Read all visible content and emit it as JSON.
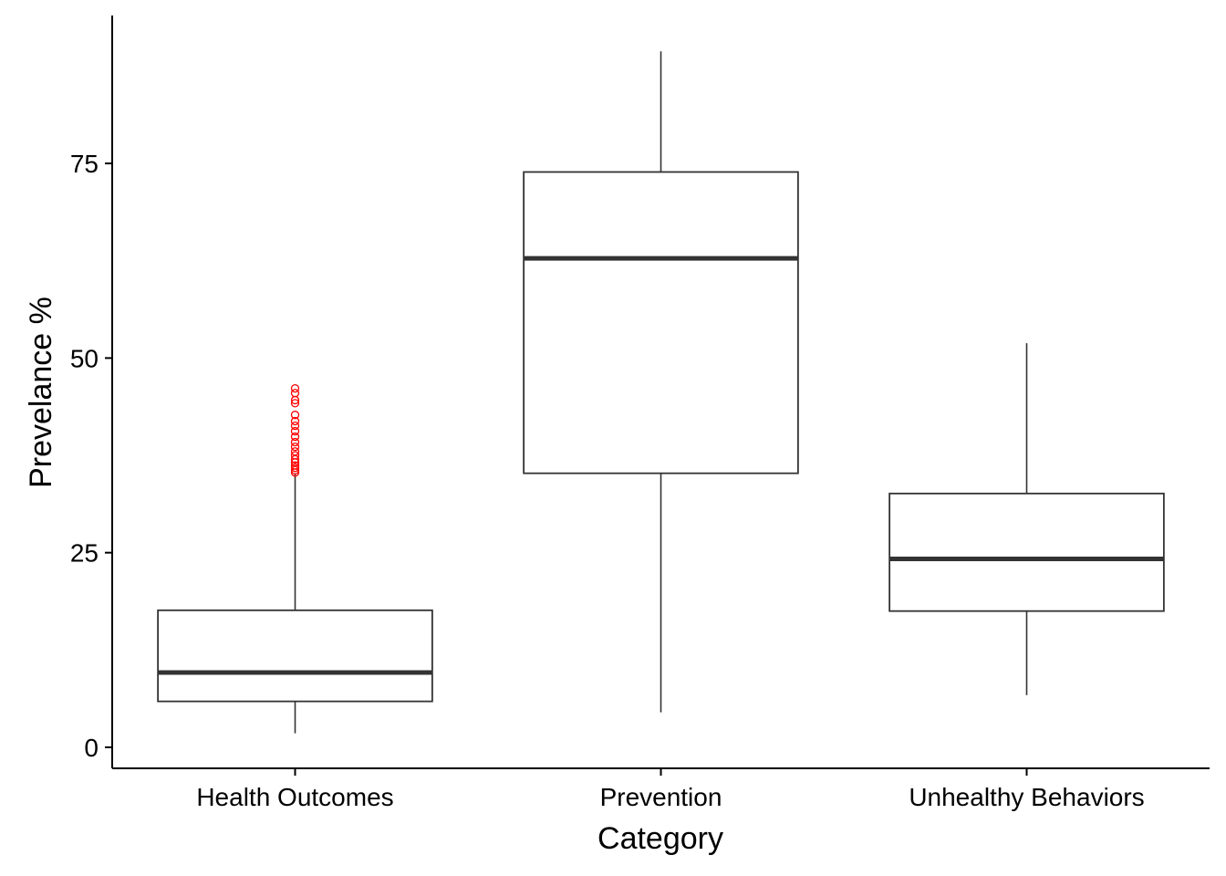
{
  "chart_data": {
    "type": "boxplot",
    "title": "",
    "xlabel": "Category",
    "ylabel": "Prevelance %",
    "categories": [
      "Health Outcomes",
      "Prevention",
      "Unhealthy Behaviors"
    ],
    "ylim": [
      -2.7,
      94
    ],
    "yticks": [
      0,
      25,
      50,
      75
    ],
    "grid": false,
    "legend": "none",
    "boxes": [
      {
        "category": "Health Outcomes",
        "whisker_low": 1.8,
        "q1": 5.9,
        "median": 9.6,
        "q3": 17.6,
        "whisker_high": 35.2,
        "outliers": [
          35.3,
          35.6,
          35.9,
          36.2,
          36.6,
          37.0,
          37.5,
          38.0,
          38.6,
          39.2,
          39.9,
          40.6,
          41.3,
          41.9,
          42.7,
          44.2,
          44.6,
          45.5,
          46.1
        ]
      },
      {
        "category": "Prevention",
        "whisker_low": 4.5,
        "q1": 35.2,
        "median": 62.8,
        "q3": 73.9,
        "whisker_high": 89.4,
        "outliers": []
      },
      {
        "category": "Unhealthy Behaviors",
        "whisker_low": 6.7,
        "q1": 17.5,
        "median": 24.2,
        "q3": 32.6,
        "whisker_high": 51.9,
        "outliers": []
      }
    ],
    "colors": {
      "box_line": "#333333",
      "median_line": "#333333",
      "outlier": "#ff0000",
      "axis": "#000000"
    }
  }
}
